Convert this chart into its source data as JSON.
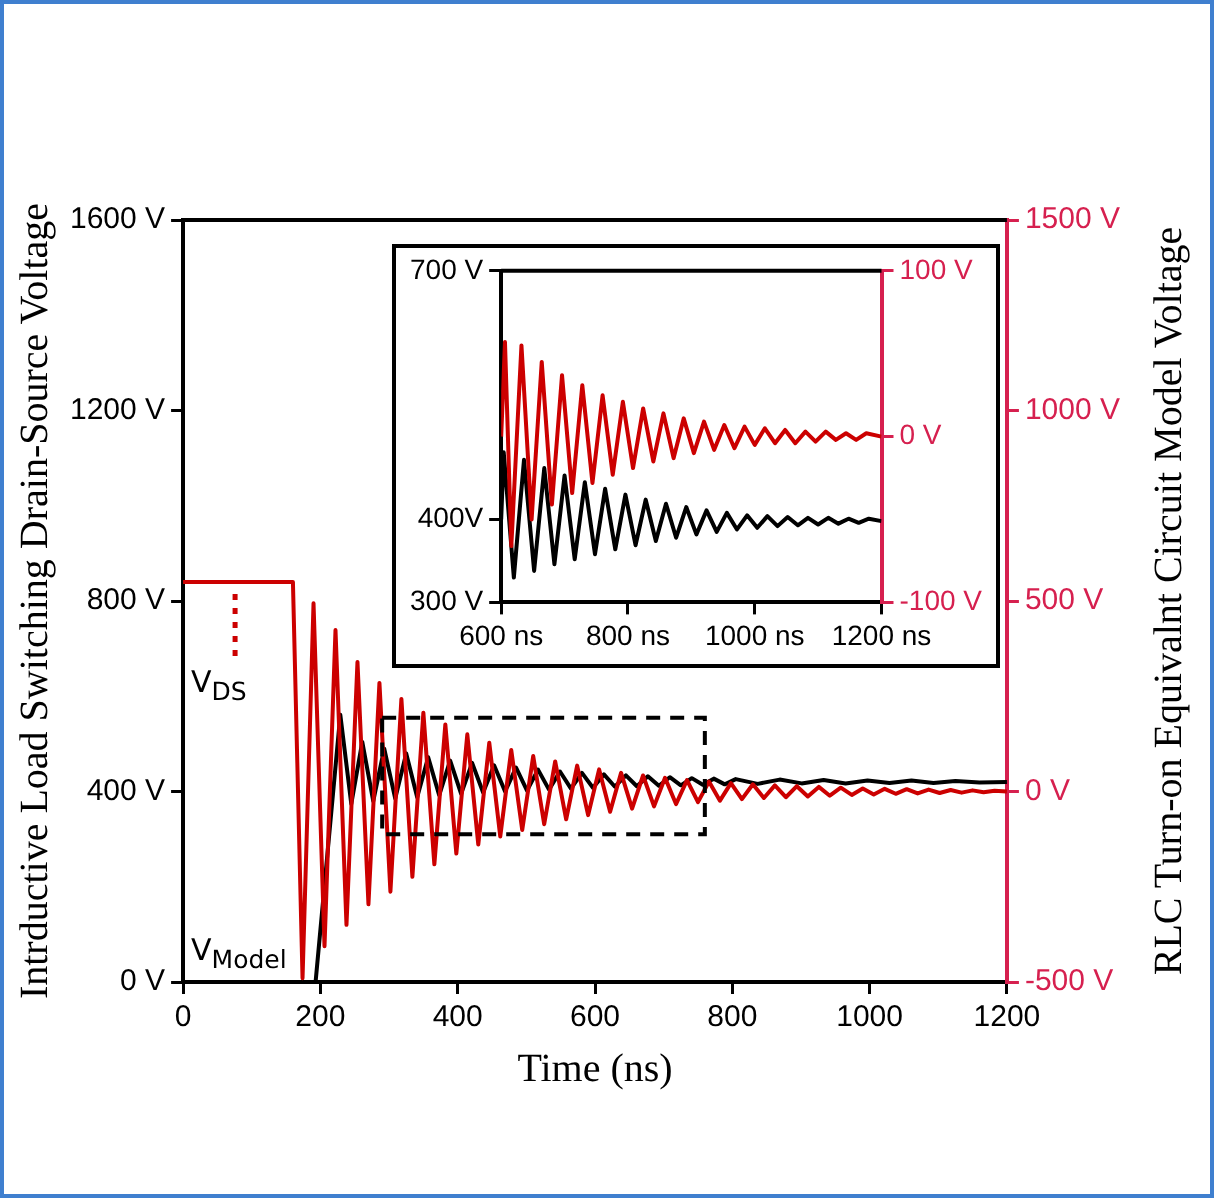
{
  "chart_data": [
    {
      "type": "line",
      "xlabel": "Time (ns)",
      "ylabel": "Intrductive Load Switching Drain-Source Voltage",
      "y2label": "RLC Turn-on Equivalnt Circuit Model Voltage",
      "xlim": [
        0,
        1200
      ],
      "xticks": [
        0,
        200,
        400,
        600,
        800,
        1000,
        1200
      ],
      "ylim": [
        0,
        1600
      ],
      "yticks": [
        {
          "value": 0,
          "label": "0 V"
        },
        {
          "value": 400,
          "label": "400 V"
        },
        {
          "value": 800,
          "label": "800 V"
        },
        {
          "value": 1200,
          "label": "1200 V"
        },
        {
          "value": 1600,
          "label": "1600 V"
        }
      ],
      "y2lim": [
        -500,
        1500
      ],
      "y2ticks": [
        {
          "value": -500,
          "label": "-500 V"
        },
        {
          "value": 0,
          "label": "0 V"
        },
        {
          "value": 500,
          "label": "500 V"
        },
        {
          "value": 1000,
          "label": "1000 V"
        },
        {
          "value": 1500,
          "label": "1500 V"
        }
      ],
      "grid": false,
      "legend": "left",
      "marker": "none",
      "series": [
        {
          "name": "V$_{DS}$",
          "color": "#cc0000",
          "axis": "y2",
          "x": [
            0,
            160,
            174,
            190,
            206,
            222,
            238,
            254,
            270,
            286,
            302,
            318,
            334,
            350,
            366,
            382,
            398,
            414,
            430,
            446,
            462,
            478,
            494,
            510,
            526,
            542,
            558,
            574,
            590,
            606,
            622,
            638,
            654,
            670,
            686,
            702,
            718,
            734,
            750,
            766,
            782,
            798,
            814,
            830,
            846,
            862,
            878,
            894,
            910,
            926,
            942,
            958,
            974,
            990,
            1006,
            1022,
            1038,
            1054,
            1070,
            1086,
            1102,
            1118,
            1134,
            1150,
            1166,
            1182,
            1200
          ],
          "values": [
            550,
            550,
            -490,
            494,
            -406,
            424,
            -350,
            340,
            -296,
            285,
            -263,
            243,
            -224,
            207,
            -191,
            176,
            -163,
            150,
            -139,
            128,
            -118,
            109,
            -101,
            93,
            -86,
            79,
            -73,
            68,
            -62,
            58,
            -53,
            49,
            -45,
            42,
            -39,
            36,
            -33,
            30,
            -28,
            26,
            -24,
            22,
            -20,
            19,
            -17,
            16,
            -15,
            14,
            -13,
            12,
            -11,
            10,
            -9,
            8,
            -8,
            7,
            -6,
            6,
            -5,
            5,
            -4,
            4,
            -3,
            3,
            -2,
            2,
            0
          ]
        },
        {
          "name": "V$_{Model}$",
          "color": "#000000",
          "x": [
            0,
            193,
            229,
            245,
            261,
            277,
            293,
            309,
            325,
            341,
            357,
            373,
            389,
            405,
            421,
            437,
            453,
            469,
            485,
            501,
            517,
            533,
            549,
            565,
            581,
            597,
            613,
            629,
            645,
            661,
            677,
            693,
            709,
            725,
            741,
            757,
            773,
            789,
            805,
            837,
            869,
            901,
            933,
            965,
            997,
            1029,
            1061,
            1093,
            1125,
            1160,
            1200
          ],
          "values": [
            0,
            0,
            561,
            374,
            504,
            380,
            490,
            385,
            480,
            388,
            472,
            392,
            465,
            395,
            460,
            398,
            455,
            400,
            450,
            402,
            446,
            404,
            442,
            406,
            439,
            408,
            436,
            410,
            434,
            411,
            432,
            412,
            430,
            413,
            428,
            414,
            427,
            415,
            426,
            416,
            425,
            417,
            424,
            417,
            423,
            418,
            423,
            418,
            422,
            419,
            420
          ]
        }
      ]
    },
    {
      "type": "line",
      "xlim": [
        600,
        1200
      ],
      "xticks": [
        {
          "value": 600,
          "label": "600 ns"
        },
        {
          "value": 800,
          "label": "800 ns"
        },
        {
          "value": 1000,
          "label": "1000 ns"
        },
        {
          "value": 1200,
          "label": "1200 ns"
        }
      ],
      "ylim": [
        300,
        700
      ],
      "yticks": [
        {
          "value": 300,
          "label": "300 V"
        },
        {
          "value": 400,
          "label": "400V"
        },
        {
          "value": 700,
          "label": "700 V"
        }
      ],
      "y2lim": [
        -100,
        100
      ],
      "y2ticks": [
        {
          "value": -100,
          "label": "-100 V"
        },
        {
          "value": 0,
          "label": "0 V"
        },
        {
          "value": 100,
          "label": "100 V"
        }
      ],
      "grid": false,
      "legend": false,
      "marker": "none",
      "series": [
        {
          "color": "#cc0000",
          "axis": "y2",
          "x": [
            600,
            606,
            616,
            632,
            648,
            664,
            680,
            696,
            712,
            728,
            744,
            760,
            776,
            792,
            808,
            824,
            840,
            856,
            872,
            888,
            904,
            920,
            936,
            952,
            968,
            984,
            1000,
            1016,
            1032,
            1048,
            1064,
            1080,
            1096,
            1112,
            1128,
            1144,
            1160,
            1176,
            1200
          ],
          "values": [
            0,
            57,
            -66,
            55,
            -50,
            45,
            -41,
            37,
            -34,
            31,
            -28,
            25,
            -23,
            21,
            -19,
            17,
            -15,
            14,
            -13,
            11,
            -10,
            9,
            -8,
            7,
            -7,
            6,
            -5,
            5,
            -4,
            4,
            -4,
            3,
            -3,
            3,
            -2,
            2,
            -2,
            2,
            0
          ]
        },
        {
          "color": "#000000",
          "x": [
            600,
            604,
            620,
            636,
            652,
            668,
            684,
            700,
            716,
            732,
            748,
            764,
            780,
            796,
            812,
            828,
            844,
            860,
            876,
            892,
            908,
            924,
            940,
            956,
            972,
            988,
            1004,
            1020,
            1036,
            1052,
            1068,
            1084,
            1100,
            1116,
            1132,
            1148,
            1164,
            1180,
            1200
          ],
          "values": [
            400,
            481,
            330,
            472,
            338,
            462,
            346,
            453,
            352,
            445,
            358,
            437,
            364,
            430,
            369,
            424,
            374,
            419,
            378,
            415,
            382,
            411,
            385,
            408,
            388,
            405,
            390,
            404,
            392,
            403,
            393,
            402,
            394,
            402,
            395,
            401,
            396,
            401,
            398
          ]
        }
      ]
    }
  ]
}
